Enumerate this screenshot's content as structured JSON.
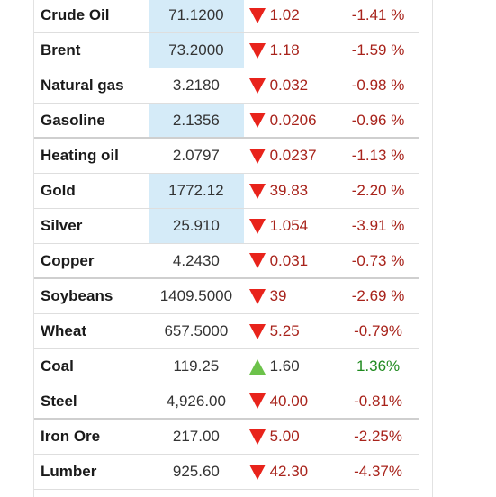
{
  "colors": {
    "down_arrow": "#e8231b",
    "up_arrow": "#6cc24a",
    "negative_text": "#a8231b",
    "positive_text": "#1f8a1f",
    "highlight": "#d5ebf8"
  },
  "commodities": [
    {
      "name": "Crude Oil",
      "price": "71.1200",
      "change": "1.02",
      "percent": "-1.41 %",
      "direction": "down",
      "highlight": true
    },
    {
      "name": "Brent",
      "price": "73.2000",
      "change": "1.18",
      "percent": "-1.59 %",
      "direction": "down",
      "highlight": true
    },
    {
      "name": "Natural gas",
      "price": "3.2180",
      "change": "0.032",
      "percent": "-0.98 %",
      "direction": "down",
      "highlight": false
    },
    {
      "name": "Gasoline",
      "price": "2.1356",
      "change": "0.0206",
      "percent": "-0.96 %",
      "direction": "down",
      "highlight": true
    },
    {
      "name": "Heating oil",
      "price": "2.0797",
      "change": "0.0237",
      "percent": "-1.13 %",
      "direction": "down",
      "highlight": false
    },
    {
      "name": "Gold",
      "price": "1772.12",
      "change": "39.83",
      "percent": "-2.20 %",
      "direction": "down",
      "highlight": true
    },
    {
      "name": "Silver",
      "price": "25.910",
      "change": "1.054",
      "percent": "-3.91 %",
      "direction": "down",
      "highlight": true
    },
    {
      "name": "Copper",
      "price": "4.2430",
      "change": "0.031",
      "percent": "-0.73 %",
      "direction": "down",
      "highlight": false
    },
    {
      "name": "Soybeans",
      "price": "1409.5000",
      "change": "39",
      "percent": "-2.69 %",
      "direction": "down",
      "highlight": false
    },
    {
      "name": "Wheat",
      "price": "657.5000",
      "change": "5.25",
      "percent": "-0.79%",
      "direction": "down",
      "highlight": false
    },
    {
      "name": "Coal",
      "price": "119.25",
      "change": "1.60",
      "percent": "1.36%",
      "direction": "up",
      "highlight": false
    },
    {
      "name": "Steel",
      "price": "4,926.00",
      "change": "40.00",
      "percent": "-0.81%",
      "direction": "down",
      "highlight": false
    },
    {
      "name": "Iron Ore",
      "price": "217.00",
      "change": "5.00",
      "percent": "-2.25%",
      "direction": "down",
      "highlight": false
    },
    {
      "name": "Lumber",
      "price": "925.60",
      "change": "42.30",
      "percent": "-4.37%",
      "direction": "down",
      "highlight": false
    }
  ]
}
